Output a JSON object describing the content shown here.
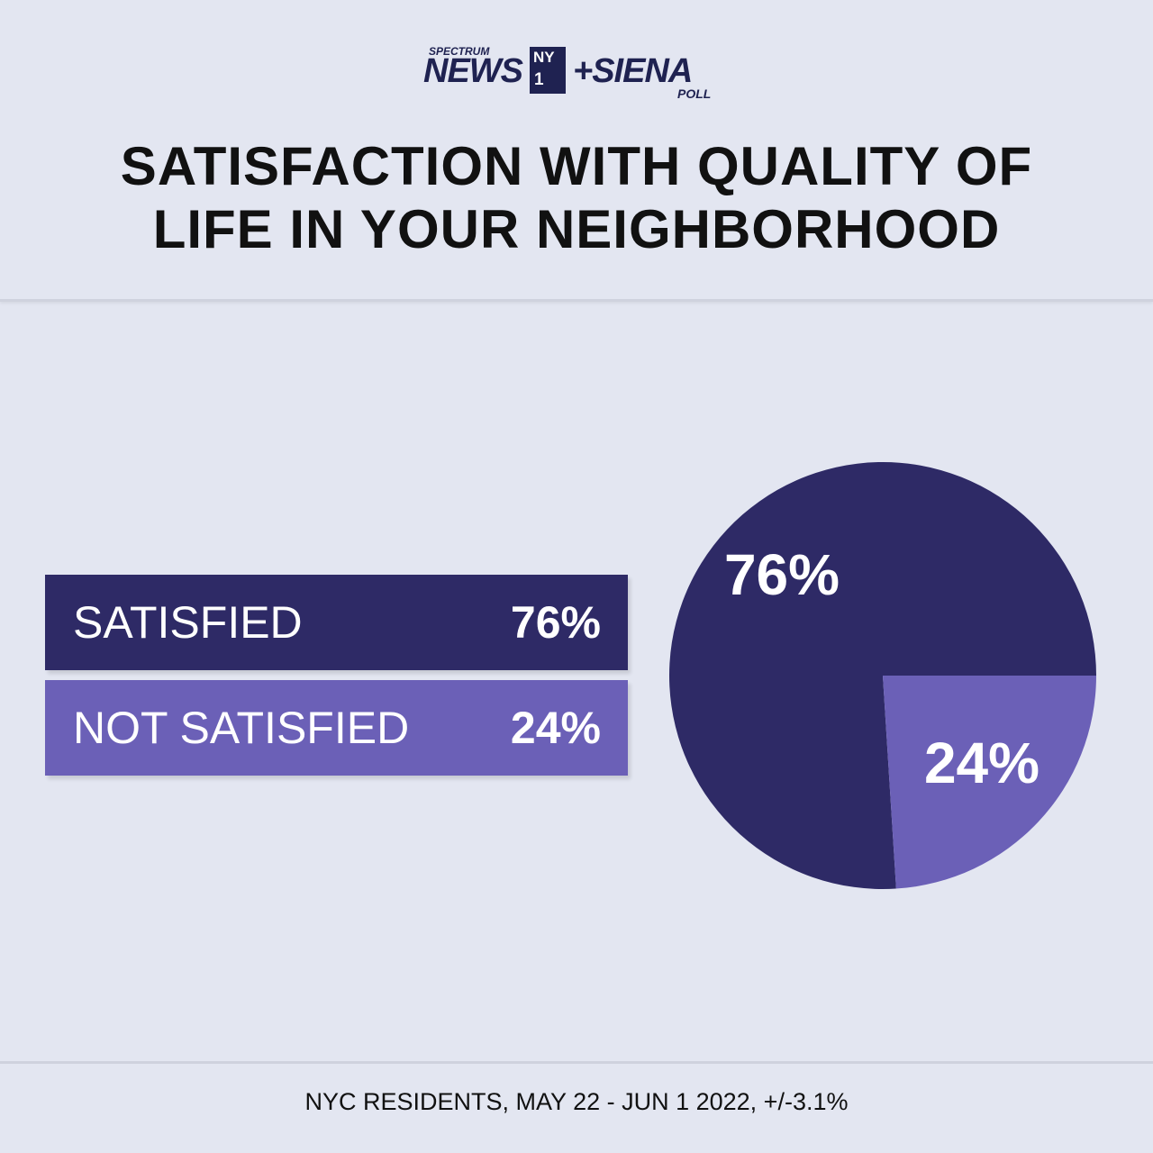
{
  "logo": {
    "spectrum": "SPECTRUM",
    "news": "NEWS",
    "ny": "NY",
    "one": "1",
    "siena": "+SIENA",
    "poll": "POLL"
  },
  "title_line1": "SATISFACTION WITH QUALITY OF",
  "title_line2": "LIFE IN YOUR NEIGHBORHOOD",
  "footer": "NYC RESIDENTS, MAY 22 - JUN 1 2022, +/-3.1%",
  "colors": {
    "satisfied": "#2e2a66",
    "not_satisfied": "#6b60b7",
    "background": "#e3e6f1"
  },
  "chart_data": {
    "type": "pie",
    "title": "SATISFACTION WITH QUALITY OF LIFE IN YOUR NEIGHBORHOOD",
    "categories": [
      "SATISFIED",
      "NOT SATISFIED"
    ],
    "values": [
      76,
      24
    ],
    "value_labels": [
      "76%",
      "24%"
    ],
    "legend_position": "left"
  }
}
